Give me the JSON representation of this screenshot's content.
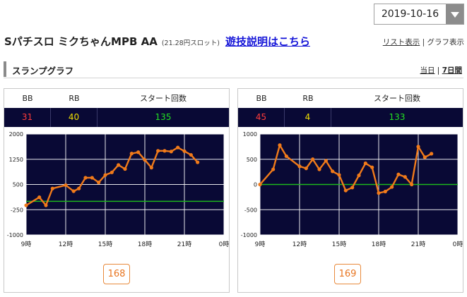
{
  "date_select": {
    "value": "2019-10-16"
  },
  "header": {
    "title": "Sパチスロ ミクちゃんMPB AA",
    "subtitle": "(21.28円スロット)",
    "explain_link": "遊技説明はこちら",
    "list_view": "リスト表示",
    "separator": "|",
    "graph_view": "グラフ表示"
  },
  "section": {
    "title": "スランプグラフ",
    "range_today": "当日",
    "range_separator": "|",
    "range_7days": "7日間"
  },
  "colors": {
    "bb": "#ff3b3b",
    "rb": "#f0e000",
    "start": "#22e022",
    "plot_bg": "#090935",
    "line": "#f07a1a",
    "zero_line": "#1db81d",
    "grid": "#ffffff"
  },
  "stats_headers": {
    "bb": "BB",
    "rb": "RB",
    "start": "スタート回数"
  },
  "machines": [
    {
      "bb": "31",
      "rb": "40",
      "start": "135",
      "machine_number": "168",
      "chart_data": {
        "type": "line",
        "x_ticks": [
          "9時",
          "12時",
          "15時",
          "18時",
          "21時",
          "0時"
        ],
        "y_ticks": [
          "2000",
          "1250",
          "500",
          "-250",
          "-1000"
        ],
        "ylim": [
          -1000,
          2000
        ],
        "xlim": [
          9,
          24
        ],
        "x": [
          9,
          10,
          10.5,
          11,
          12,
          12.6,
          13,
          13.5,
          14,
          14.5,
          15,
          15.5,
          16,
          16.5,
          17,
          17.5,
          18,
          18.5,
          19,
          19.5,
          20,
          20.5,
          21,
          21.5,
          22
        ],
        "y": [
          -120,
          120,
          -120,
          380,
          480,
          300,
          380,
          700,
          700,
          560,
          780,
          860,
          1080,
          960,
          1420,
          1460,
          1230,
          1000,
          1500,
          1500,
          1480,
          1600,
          1490,
          1380,
          1160
        ]
      }
    },
    {
      "bb": "45",
      "rb": "4",
      "start": "133",
      "machine_number": "169",
      "chart_data": {
        "type": "line",
        "x_ticks": [
          "9時",
          "12時",
          "15時",
          "18時",
          "21時",
          "0時"
        ],
        "y_ticks": [
          "1000",
          "500",
          "0",
          "-500",
          "-1000"
        ],
        "ylim": [
          -1000,
          1000
        ],
        "xlim": [
          9,
          24
        ],
        "x": [
          9,
          10,
          10.5,
          11,
          12,
          12.5,
          13,
          13.5,
          14,
          14.5,
          15,
          15.5,
          16,
          16.5,
          17,
          17.5,
          18,
          18.5,
          19,
          19.5,
          20,
          20.5,
          21,
          21.5,
          22
        ],
        "y": [
          0,
          300,
          780,
          560,
          360,
          320,
          500,
          300,
          470,
          260,
          190,
          -120,
          -60,
          180,
          420,
          340,
          -170,
          -140,
          -50,
          200,
          150,
          0,
          750,
          540,
          610
        ]
      }
    }
  ]
}
